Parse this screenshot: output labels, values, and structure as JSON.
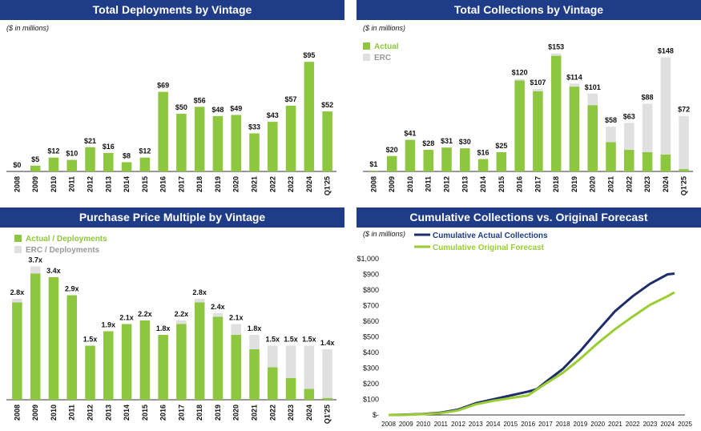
{
  "colors": {
    "actual": "#8dc63f",
    "erc": "#e0e0e0",
    "header": "#1f3c88",
    "line_actual": "#1f2d6b",
    "line_forecast": "#9acd32"
  },
  "chart_data": [
    {
      "id": "deployments",
      "type": "bar",
      "title": "Total Deployments by Vintage",
      "unit_note": "($ in millions)",
      "categories": [
        "2008",
        "2009",
        "2010",
        "2011",
        "2012",
        "2013",
        "2014",
        "2015",
        "2016",
        "2017",
        "2018",
        "2019",
        "2020",
        "2021",
        "2022",
        "2023",
        "2024",
        "Q1'25"
      ],
      "values": [
        0,
        5,
        12,
        10,
        21,
        16,
        8,
        12,
        69,
        50,
        56,
        48,
        49,
        33,
        43,
        57,
        95,
        52
      ],
      "labels": [
        "$0",
        "$5",
        "$12",
        "$10",
        "$21",
        "$16",
        "$8",
        "$12",
        "$69",
        "$50",
        "$56",
        "$48",
        "$49",
        "$33",
        "$43",
        "$57",
        "$95",
        "$52"
      ],
      "ylim": [
        0,
        100
      ]
    },
    {
      "id": "collections",
      "type": "bar",
      "stacked": true,
      "title": "Total Collections by Vintage",
      "unit_note": "($ in millions)",
      "legend": [
        "Actual",
        "ERC"
      ],
      "categories": [
        "2008",
        "2009",
        "2010",
        "2011",
        "2012",
        "2013",
        "2014",
        "2015",
        "2016",
        "2017",
        "2018",
        "2019",
        "2020",
        "2021",
        "2022",
        "2023",
        "2024",
        "Q1'25"
      ],
      "series": [
        {
          "name": "Actual",
          "values": [
            1,
            20,
            41,
            28,
            31,
            30,
            16,
            25,
            118,
            104,
            150,
            110,
            86,
            38,
            28,
            25,
            22,
            3
          ]
        },
        {
          "name": "ERC",
          "values": [
            0,
            0,
            0,
            0,
            0,
            0,
            0,
            0,
            2,
            3,
            3,
            4,
            15,
            20,
            35,
            63,
            126,
            69
          ]
        }
      ],
      "labels": [
        "$1",
        "$20",
        "$41",
        "$28",
        "$31",
        "$30",
        "$16",
        "$25",
        "$120",
        "$107",
        "$153",
        "$114",
        "$101",
        "$58",
        "$63",
        "$88",
        "$148",
        "$72"
      ],
      "ylim": [
        0,
        160
      ]
    },
    {
      "id": "multiple",
      "type": "bar",
      "stacked": true,
      "title": "Purchase Price Multiple by Vintage",
      "legend": [
        "Actual / Deployments",
        "ERC / Deployments"
      ],
      "categories": [
        "2008",
        "2009",
        "2010",
        "2011",
        "2012",
        "2013",
        "2014",
        "2015",
        "2016",
        "2017",
        "2018",
        "2019",
        "2020",
        "2021",
        "2022",
        "2023",
        "2024",
        "Q1'25"
      ],
      "series": [
        {
          "name": "Actual / Deployments",
          "values": [
            2.7,
            3.5,
            3.4,
            2.9,
            1.5,
            1.9,
            2.1,
            2.2,
            1.8,
            2.1,
            2.7,
            2.3,
            1.8,
            1.4,
            0.9,
            0.6,
            0.3,
            0.05
          ]
        },
        {
          "name": "ERC / Deployments",
          "values": [
            0.1,
            0.2,
            0,
            0,
            0,
            0,
            0,
            0,
            0,
            0.1,
            0.1,
            0.1,
            0.3,
            0.4,
            0.6,
            0.9,
            1.2,
            1.35
          ]
        }
      ],
      "labels": [
        "2.8x",
        "3.7x",
        "3.4x",
        "2.9x",
        "1.5x",
        "1.9x",
        "2.1x",
        "2.2x",
        "1.8x",
        "2.2x",
        "2.8x",
        "2.4x",
        "2.1x",
        "1.8x",
        "1.5x",
        "1.5x",
        "1.5x",
        "1.4x"
      ],
      "ylim": [
        0,
        4.0
      ]
    },
    {
      "id": "cumulative",
      "type": "line",
      "title": "Cumulative Collections vs. Original Forecast",
      "unit_note": "($ in millions)",
      "x": [
        "2008",
        "2009",
        "2010",
        "2011",
        "2012",
        "2013",
        "2014",
        "2015",
        "2016",
        "2017",
        "2018",
        "2019",
        "2020",
        "2021",
        "2022",
        "2023",
        "2024",
        "2025"
      ],
      "yticks": [
        "$-",
        "$100",
        "$200",
        "$300",
        "$400",
        "$500",
        "$600",
        "$700",
        "$800",
        "$900",
        "$1,000"
      ],
      "ylim": [
        0,
        1000
      ],
      "series": [
        {
          "name": "Cumulative Actual Collections",
          "x": [
            2008,
            2009,
            2010,
            2011,
            2012,
            2013,
            2014,
            2015,
            2016,
            2016.5,
            2017,
            2018,
            2019,
            2020,
            2021,
            2022,
            2023,
            2024,
            2024.4
          ],
          "values": [
            0,
            2,
            6,
            15,
            35,
            75,
            100,
            125,
            150,
            165,
            210,
            295,
            410,
            540,
            665,
            760,
            840,
            900,
            905
          ]
        },
        {
          "name": "Cumulative Original Forecast",
          "x": [
            2008,
            2009,
            2010,
            2011,
            2012,
            2013,
            2014,
            2015,
            2016,
            2017,
            2018,
            2019,
            2020,
            2021,
            2022,
            2023,
            2024,
            2024.4
          ],
          "values": [
            0,
            1,
            5,
            12,
            30,
            68,
            90,
            108,
            125,
            200,
            270,
            360,
            460,
            550,
            630,
            705,
            760,
            785
          ]
        }
      ]
    }
  ]
}
